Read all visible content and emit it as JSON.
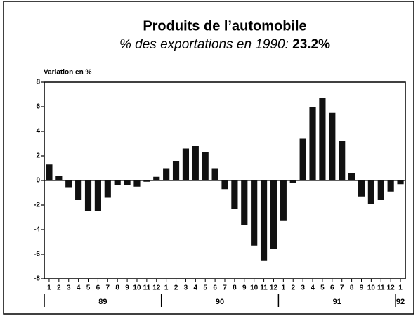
{
  "chart_data": {
    "type": "bar",
    "title": "Produits de l’automobile",
    "subtitle": "% des exportations en 1990:",
    "subtitle_highlight": "23.2%",
    "y_label": "Variation en %",
    "categories": [
      "1",
      "2",
      "3",
      "4",
      "5",
      "6",
      "7",
      "8",
      "9",
      "10",
      "11",
      "12",
      "1",
      "2",
      "3",
      "4",
      "5",
      "6",
      "7",
      "8",
      "9",
      "10",
      "11",
      "12",
      "1",
      "2",
      "3",
      "4",
      "5",
      "6",
      "7",
      "8",
      "9",
      "10",
      "11",
      "12",
      "1"
    ],
    "years": [
      "89",
      "90",
      "91",
      "92"
    ],
    "values": [
      1.3,
      0.4,
      -0.6,
      -1.6,
      -2.5,
      -2.5,
      -1.4,
      -0.4,
      -0.4,
      -0.5,
      -0.1,
      0.3,
      1.0,
      1.6,
      2.6,
      2.8,
      2.3,
      1.0,
      -0.7,
      -2.3,
      -3.6,
      -5.3,
      -6.5,
      -5.6,
      -3.3,
      -0.2,
      3.4,
      6.0,
      6.7,
      5.5,
      3.2,
      0.6,
      -1.3,
      -1.9,
      -1.6,
      -0.9,
      -0.3
    ],
    "color": "#111111",
    "ylim": [
      -8,
      8
    ],
    "yticks": [
      -8,
      -6,
      -4,
      -2,
      0,
      2,
      4,
      6,
      8
    ]
  }
}
